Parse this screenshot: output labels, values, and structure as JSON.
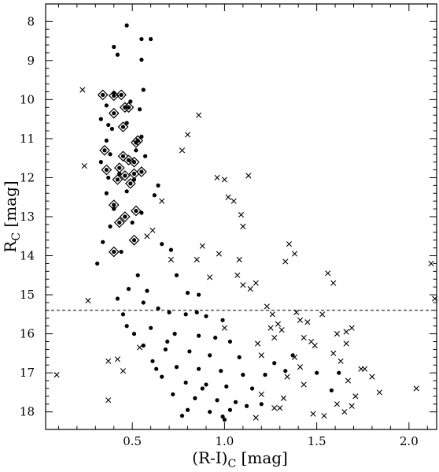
{
  "chart_data": {
    "type": "scatter",
    "xlabel": "(R-I)",
    "xlabel_sub": "C",
    "xlabel_unit": " [mag]",
    "ylabel": "R",
    "ylabel_sub": "C",
    "ylabel_unit": " [mag]",
    "xlim": [
      0.03,
      2.15
    ],
    "ylim": [
      18.45,
      7.55
    ],
    "y_inverted": true,
    "x_ticks": [
      0.5,
      1.0,
      1.5,
      2.0
    ],
    "x_tick_labels": [
      "0.5",
      "1.0",
      "1.5",
      "2.0"
    ],
    "y_ticks": [
      8,
      9,
      10,
      11,
      12,
      13,
      14,
      15,
      16,
      17,
      18
    ],
    "y_tick_labels": [
      "8",
      "9",
      "10",
      "11",
      "12",
      "13",
      "14",
      "15",
      "16",
      "17",
      "18"
    ],
    "grid": false,
    "reference_line": {
      "y": 15.4,
      "style": "dashed"
    },
    "series": [
      {
        "marker": "dot",
        "points": [
          [
            0.47,
            8.1
          ],
          [
            0.55,
            8.45
          ],
          [
            0.6,
            8.45
          ],
          [
            0.4,
            8.65
          ],
          [
            0.42,
            8.85
          ],
          [
            0.55,
            8.98
          ],
          [
            0.56,
            9.75
          ],
          [
            0.36,
            10.15
          ],
          [
            0.49,
            10.05
          ],
          [
            0.54,
            10.25
          ],
          [
            0.33,
            10.5
          ],
          [
            0.37,
            10.65
          ],
          [
            0.47,
            10.6
          ],
          [
            0.39,
            10.75
          ],
          [
            0.36,
            11.05
          ],
          [
            0.55,
            10.95
          ],
          [
            0.38,
            11.4
          ],
          [
            0.52,
            11.3
          ],
          [
            0.33,
            11.6
          ],
          [
            0.57,
            11.45
          ],
          [
            0.37,
            12.0
          ],
          [
            0.51,
            12.05
          ],
          [
            0.64,
            12.2
          ],
          [
            0.36,
            12.4
          ],
          [
            0.47,
            12.35
          ],
          [
            0.62,
            12.45
          ],
          [
            0.4,
            12.8
          ],
          [
            0.55,
            12.9
          ],
          [
            0.38,
            13.25
          ],
          [
            0.5,
            13.15
          ],
          [
            0.31,
            14.2
          ],
          [
            0.66,
            13.7
          ],
          [
            0.71,
            13.85
          ],
          [
            0.74,
            14.5
          ],
          [
            0.8,
            14.95
          ],
          [
            0.86,
            15.0
          ],
          [
            0.42,
            15.1
          ],
          [
            0.56,
            15.2
          ],
          [
            0.64,
            15.35
          ],
          [
            0.7,
            15.45
          ],
          [
            0.79,
            15.5
          ],
          [
            0.9,
            15.55
          ],
          [
            0.99,
            15.65
          ],
          [
            0.47,
            15.8
          ],
          [
            0.6,
            15.85
          ],
          [
            0.73,
            16.0
          ],
          [
            0.86,
            16.05
          ],
          [
            0.95,
            16.1
          ],
          [
            1.03,
            16.2
          ],
          [
            0.56,
            16.3
          ],
          [
            0.68,
            16.4
          ],
          [
            0.81,
            16.45
          ],
          [
            0.92,
            16.55
          ],
          [
            1.08,
            16.6
          ],
          [
            0.61,
            16.7
          ],
          [
            0.74,
            16.85
          ],
          [
            0.86,
            16.9
          ],
          [
            0.98,
            16.95
          ],
          [
            1.1,
            17.05
          ],
          [
            0.66,
            17.1
          ],
          [
            0.79,
            17.25
          ],
          [
            0.9,
            17.3
          ],
          [
            1.01,
            17.35
          ],
          [
            1.15,
            17.4
          ],
          [
            0.72,
            17.55
          ],
          [
            0.84,
            17.65
          ],
          [
            0.96,
            17.7
          ],
          [
            1.06,
            17.75
          ],
          [
            1.2,
            17.8
          ],
          [
            0.8,
            17.95
          ],
          [
            0.92,
            18.0
          ],
          [
            1.03,
            17.95
          ],
          [
            1.12,
            17.85
          ],
          [
            0.77,
            18.1
          ],
          [
            0.99,
            18.12
          ],
          [
            1.0,
            18.2
          ],
          [
            0.69,
            16.2
          ],
          [
            0.53,
            14.5
          ],
          [
            0.58,
            14.9
          ],
          [
            0.45,
            15.5
          ],
          [
            0.51,
            16.0
          ],
          [
            0.63,
            16.9
          ],
          [
            0.88,
            17.4
          ],
          [
            1.27,
            16.75
          ],
          [
            1.22,
            17.05
          ],
          [
            1.33,
            16.95
          ],
          [
            1.37,
            16.55
          ],
          [
            1.5,
            17.0
          ],
          [
            1.58,
            17.45
          ],
          [
            1.62,
            17.0
          ],
          [
            0.4,
            9.83
          ],
          [
            0.43,
            11.9
          ],
          [
            0.34,
            13.65
          ],
          [
            0.44,
            13.9
          ],
          [
            0.48,
            14.85
          ],
          [
            0.85,
            15.45
          ]
        ]
      },
      {
        "marker": "cross",
        "points": [
          [
            0.23,
            9.75
          ],
          [
            0.24,
            11.7
          ],
          [
            0.26,
            15.15
          ],
          [
            0.09,
            17.05
          ],
          [
            0.37,
            16.7
          ],
          [
            0.42,
            16.65
          ],
          [
            0.37,
            17.7
          ],
          [
            0.45,
            16.95
          ],
          [
            0.54,
            16.35
          ],
          [
            0.58,
            13.5
          ],
          [
            0.61,
            13.35
          ],
          [
            0.66,
            12.6
          ],
          [
            0.71,
            14.1
          ],
          [
            0.77,
            11.3
          ],
          [
            0.8,
            10.9
          ],
          [
            0.86,
            10.4
          ],
          [
            0.96,
            12.0
          ],
          [
            1.0,
            12.05
          ],
          [
            1.02,
            12.5
          ],
          [
            1.05,
            12.6
          ],
          [
            1.09,
            12.95
          ],
          [
            1.08,
            14.1
          ],
          [
            1.1,
            13.25
          ],
          [
            1.07,
            14.5
          ],
          [
            1.1,
            14.75
          ],
          [
            1.13,
            11.95
          ],
          [
            1.14,
            14.85
          ],
          [
            1.17,
            14.7
          ],
          [
            1.23,
            15.3
          ],
          [
            1.26,
            15.5
          ],
          [
            1.29,
            15.75
          ],
          [
            1.33,
            14.15
          ],
          [
            1.38,
            13.95
          ],
          [
            1.39,
            15.45
          ],
          [
            1.41,
            15.65
          ],
          [
            1.43,
            16.1
          ],
          [
            1.45,
            15.7
          ],
          [
            1.47,
            16.2
          ],
          [
            1.38,
            16.6
          ],
          [
            1.41,
            16.85
          ],
          [
            1.49,
            16.3
          ],
          [
            1.53,
            15.5
          ],
          [
            1.56,
            14.45
          ],
          [
            1.59,
            14.7
          ],
          [
            1.59,
            16.5
          ],
          [
            1.61,
            16.0
          ],
          [
            1.63,
            16.7
          ],
          [
            1.66,
            16.25
          ],
          [
            1.69,
            15.85
          ],
          [
            1.67,
            17.2
          ],
          [
            1.71,
            17.6
          ],
          [
            1.74,
            16.9
          ],
          [
            1.76,
            16.9
          ],
          [
            1.8,
            17.1
          ],
          [
            1.84,
            17.5
          ],
          [
            2.04,
            17.4
          ],
          [
            2.12,
            14.2
          ],
          [
            2.14,
            15.1
          ],
          [
            1.66,
            15.95
          ],
          [
            1.43,
            17.3
          ],
          [
            1.34,
            17.1
          ],
          [
            1.3,
            17.9
          ],
          [
            1.48,
            18.05
          ],
          [
            1.54,
            18.1
          ],
          [
            1.61,
            17.8
          ],
          [
            1.65,
            18.0
          ],
          [
            1.69,
            17.85
          ],
          [
            1.2,
            17.55
          ],
          [
            1.27,
            17.9
          ],
          [
            1.32,
            17.65
          ],
          [
            1.17,
            18.15
          ],
          [
            1.25,
            15.85
          ],
          [
            1.27,
            16.1
          ],
          [
            1.31,
            15.9
          ],
          [
            1.18,
            16.25
          ],
          [
            1.2,
            16.55
          ],
          [
            0.85,
            14.1
          ],
          [
            0.88,
            13.75
          ],
          [
            0.92,
            14.55
          ],
          [
            0.97,
            13.95
          ],
          [
            1.35,
            13.7
          ],
          [
            1.0,
            15.85
          ]
        ]
      },
      {
        "marker": "diamond-dot",
        "points": [
          [
            0.34,
            9.88
          ],
          [
            0.4,
            9.9
          ],
          [
            0.44,
            9.88
          ],
          [
            0.46,
            10.2
          ],
          [
            0.48,
            10.2
          ],
          [
            0.4,
            10.35
          ],
          [
            0.45,
            10.7
          ],
          [
            0.53,
            11.05
          ],
          [
            0.35,
            11.3
          ],
          [
            0.52,
            11.1
          ],
          [
            0.45,
            11.45
          ],
          [
            0.48,
            11.55
          ],
          [
            0.43,
            11.75
          ],
          [
            0.51,
            11.6
          ],
          [
            0.36,
            11.8
          ],
          [
            0.46,
            11.95
          ],
          [
            0.51,
            11.9
          ],
          [
            0.55,
            11.85
          ],
          [
            0.42,
            12.05
          ],
          [
            0.49,
            12.15
          ],
          [
            0.4,
            12.7
          ],
          [
            0.52,
            12.85
          ],
          [
            0.46,
            13.0
          ],
          [
            0.43,
            13.15
          ],
          [
            0.51,
            13.6
          ],
          [
            0.4,
            13.9
          ]
        ]
      }
    ]
  }
}
